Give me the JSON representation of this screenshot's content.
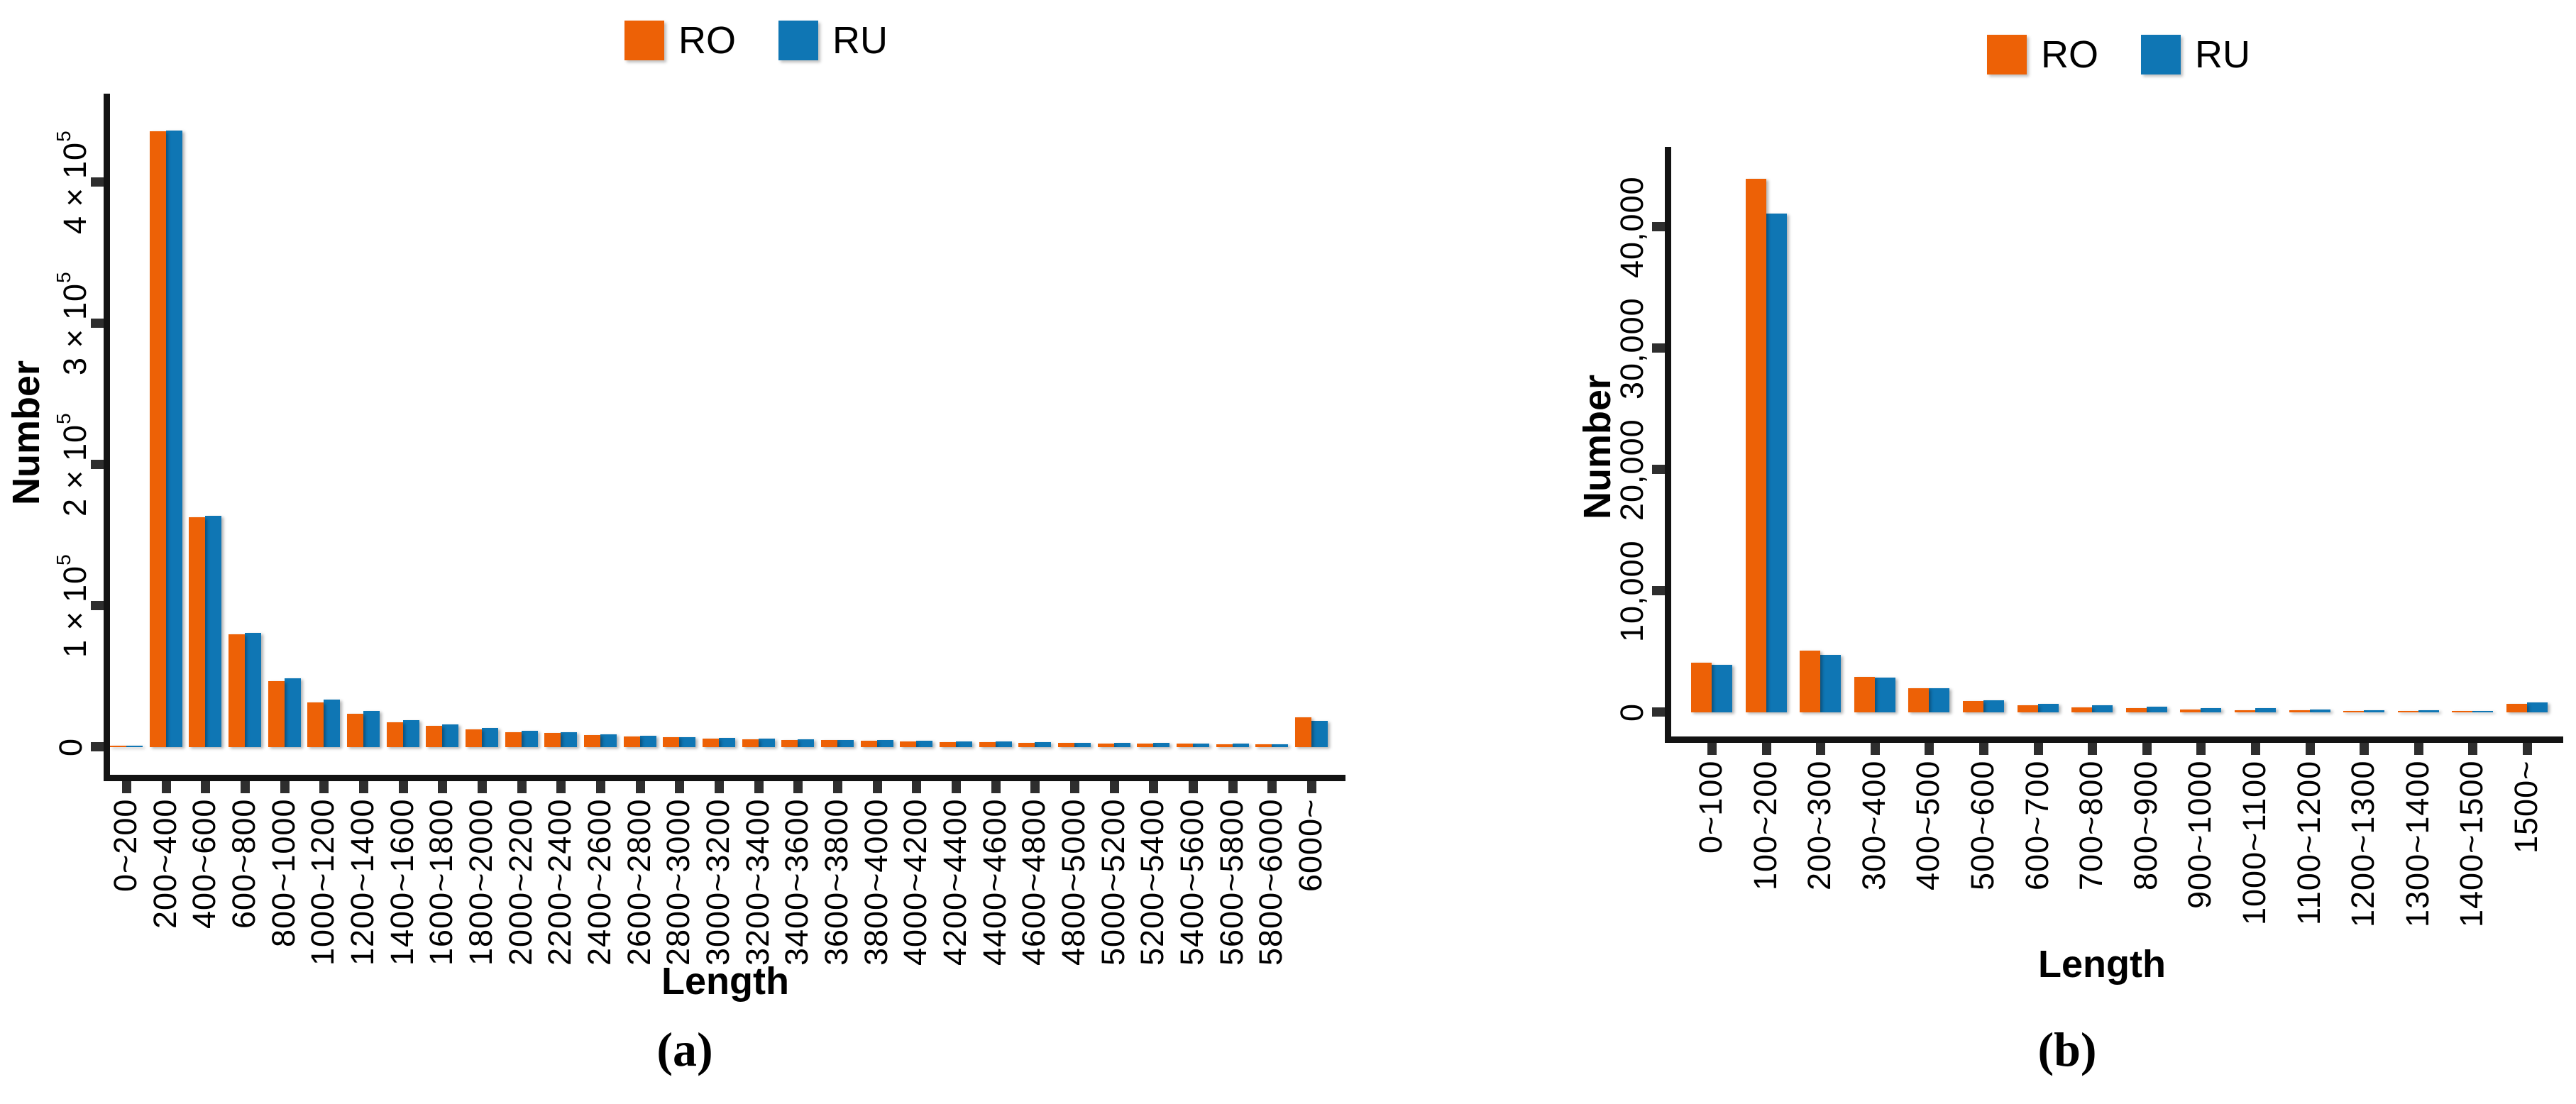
{
  "figure": {
    "background": "#ffffff",
    "text_color": "#000000",
    "axis_color": "#131313"
  },
  "chart_data": [
    {
      "panel": "a",
      "type": "bar",
      "caption": "(a)",
      "xlabel": "Length",
      "ylabel": "Number",
      "legend_position": "top-center",
      "legend": [
        {
          "name": "RO",
          "color": "#ED6106"
        },
        {
          "name": "RU",
          "color": "#0F76B4"
        }
      ],
      "grid": false,
      "ylim": [
        0,
        460000
      ],
      "y_ticks": [
        {
          "value": 0,
          "label": "0"
        },
        {
          "value": 100000,
          "label": "1×10^5"
        },
        {
          "value": 200000,
          "label": "2×10^5"
        },
        {
          "value": 300000,
          "label": "3×10^5"
        },
        {
          "value": 400000,
          "label": "4×10^5"
        }
      ],
      "categories": [
        "0~200",
        "200~400",
        "400~600",
        "600~800",
        "800~1000",
        "1000~1200",
        "1200~1400",
        "1400~1600",
        "1600~1800",
        "1800~2000",
        "2000~2200",
        "2200~2400",
        "2400~2600",
        "2600~2800",
        "2800~3000",
        "3000~3200",
        "3200~3400",
        "3400~3600",
        "3600~3800",
        "3800~4000",
        "4000~4200",
        "4200~4400",
        "4400~4600",
        "4600~4800",
        "4800~5000",
        "5000~5200",
        "5200~5400",
        "5400~5600",
        "5600~5800",
        "5800~6000",
        "6000~"
      ],
      "series": [
        {
          "name": "RO",
          "color": "#ED6106",
          "values": [
            700,
            436000,
            163000,
            80000,
            46500,
            31500,
            23500,
            17400,
            15200,
            12700,
            10800,
            9900,
            8500,
            7500,
            6800,
            6100,
            5700,
            5200,
            4800,
            4400,
            4000,
            3700,
            3400,
            3100,
            2900,
            2700,
            2500,
            2300,
            2100,
            1900,
            21000
          ]
        },
        {
          "name": "RU",
          "color": "#0F76B4",
          "values": [
            1100,
            436500,
            164000,
            81000,
            48500,
            33500,
            25500,
            19000,
            16200,
            13400,
            11500,
            10500,
            8900,
            7800,
            7100,
            6600,
            6100,
            5600,
            5200,
            4800,
            4400,
            4100,
            3800,
            3500,
            3200,
            3000,
            2800,
            2600,
            2400,
            2200,
            18600
          ]
        }
      ]
    },
    {
      "panel": "b",
      "type": "bar",
      "caption": "(b)",
      "xlabel": "Length",
      "ylabel": "Number",
      "legend_position": "top-center",
      "legend": [
        {
          "name": "RO",
          "color": "#ED6106"
        },
        {
          "name": "RU",
          "color": "#0F76B4"
        }
      ],
      "grid": false,
      "ylim": [
        0,
        46000
      ],
      "y_ticks": [
        {
          "value": 0,
          "label": "0"
        },
        {
          "value": 10000,
          "label": "10,000"
        },
        {
          "value": 20000,
          "label": "20,000"
        },
        {
          "value": 30000,
          "label": "30,000"
        },
        {
          "value": 40000,
          "label": "40,000"
        }
      ],
      "categories": [
        "0~100",
        "100~200",
        "200~300",
        "300~400",
        "400~500",
        "500~600",
        "600~700",
        "700~800",
        "800~900",
        "900~1000",
        "1000~1100",
        "1100~1200",
        "1200~1300",
        "1300~1400",
        "1400~1500",
        "1500~"
      ],
      "series": [
        {
          "name": "RO",
          "color": "#ED6106",
          "values": [
            4100,
            44000,
            5100,
            2900,
            2000,
            950,
            600,
            430,
            330,
            240,
            190,
            150,
            110,
            90,
            60,
            730
          ]
        },
        {
          "name": "RU",
          "color": "#0F76B4",
          "values": [
            3900,
            41100,
            4750,
            2870,
            1970,
            1000,
            680,
            560,
            460,
            380,
            330,
            240,
            190,
            150,
            140,
            820
          ]
        }
      ]
    }
  ]
}
